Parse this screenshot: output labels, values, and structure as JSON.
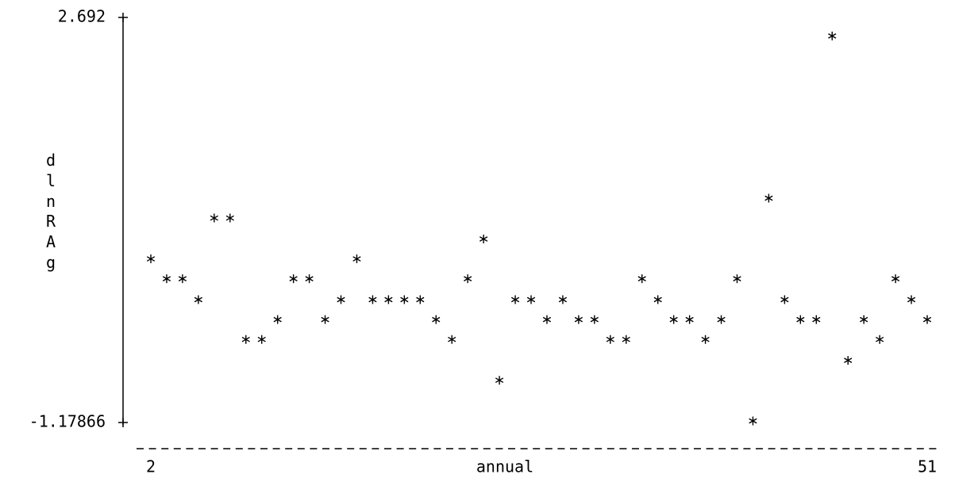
{
  "chart_data": {
    "type": "scatter",
    "y_label": "dlnRAg",
    "x_label": "annual",
    "x": [
      2,
      3,
      4,
      5,
      6,
      7,
      8,
      9,
      10,
      11,
      12,
      13,
      14,
      15,
      16,
      17,
      18,
      19,
      20,
      21,
      22,
      23,
      24,
      25,
      26,
      27,
      28,
      29,
      30,
      31,
      32,
      33,
      34,
      35,
      36,
      37,
      38,
      39,
      40,
      41,
      42,
      43,
      44,
      45,
      46,
      47,
      48,
      49,
      50,
      51
    ],
    "values": [
      0.37,
      0.18,
      0.18,
      -0.02,
      0.76,
      0.76,
      -0.4,
      -0.4,
      -0.21,
      0.18,
      0.18,
      -0.21,
      -0.02,
      0.37,
      -0.02,
      -0.02,
      -0.02,
      -0.02,
      -0.21,
      -0.4,
      0.18,
      0.56,
      -0.79,
      -0.02,
      -0.02,
      -0.21,
      -0.02,
      -0.21,
      -0.21,
      -0.4,
      -0.4,
      0.18,
      -0.02,
      -0.21,
      -0.21,
      -0.4,
      -0.21,
      0.18,
      -1.17866,
      0.95,
      -0.02,
      -0.21,
      -0.21,
      2.5,
      -0.6,
      -0.21,
      -0.4,
      0.18,
      -0.02,
      -0.21
    ],
    "color": "#000000",
    "xlim": [
      2,
      51
    ],
    "xticks": [
      2,
      51
    ],
    "ylim": [
      -1.17866,
      2.692
    ],
    "yticks": [
      2.692,
      -1.17866
    ]
  }
}
